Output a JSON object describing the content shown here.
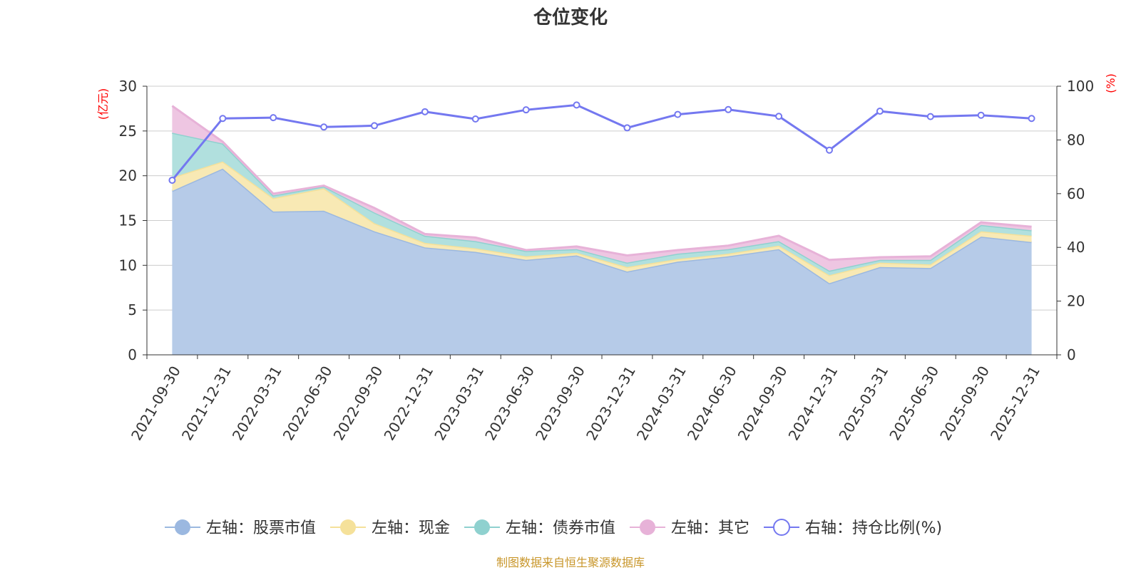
{
  "chart_data": {
    "type": "area",
    "title": "仓位变化",
    "left_axis_unit": "(亿元)",
    "right_axis_unit": "(%)",
    "ylim_left": [
      0,
      30
    ],
    "yticks_left": [
      "0",
      "5",
      "10",
      "15",
      "20",
      "25",
      "30"
    ],
    "ylim_right": [
      0,
      100
    ],
    "yticks_right": [
      "0",
      "20",
      "40",
      "60",
      "80",
      "100"
    ],
    "categories": [
      "2021-09-30",
      "2021-12-31",
      "2022-03-31",
      "2022-06-30",
      "2022-09-30",
      "2022-12-31",
      "2023-03-31",
      "2023-06-30",
      "2023-09-30",
      "2023-12-31",
      "2024-03-31",
      "2024-06-30",
      "2024-09-30",
      "2024-12-31",
      "2025-03-31",
      "2025-06-30",
      "2025-09-30",
      "2025-12-31"
    ],
    "series": [
      {
        "name": "左轴：股票市值",
        "axis": "left",
        "color": "#9bb8e0",
        "fill": "#b6cbe8",
        "values": [
          18.3,
          20.8,
          16.0,
          16.1,
          13.8,
          12.0,
          11.5,
          10.6,
          11.1,
          9.3,
          10.4,
          11.0,
          11.8,
          8.0,
          9.8,
          9.7,
          13.2,
          12.6
        ]
      },
      {
        "name": "左轴：现金",
        "axis": "left",
        "color": "#f5e19a",
        "fill": "#f8e9b4",
        "values": [
          1.5,
          0.8,
          1.5,
          2.5,
          0.9,
          0.5,
          0.4,
          0.4,
          0.3,
          0.5,
          0.3,
          0.3,
          0.4,
          0.9,
          0.5,
          0.4,
          0.6,
          0.7
        ]
      },
      {
        "name": "左轴：债券市值",
        "axis": "left",
        "color": "#8fd1cf",
        "fill": "#b1e0de",
        "values": [
          5.0,
          2.0,
          0.3,
          0.2,
          1.2,
          0.8,
          0.8,
          0.6,
          0.4,
          0.5,
          0.6,
          0.5,
          0.5,
          0.5,
          0.3,
          0.5,
          0.7,
          0.6
        ]
      },
      {
        "name": "左轴：其它",
        "axis": "left",
        "color": "#e7b2d8",
        "fill": "#eec6e2",
        "values": [
          3.0,
          0.2,
          0.2,
          0.1,
          0.5,
          0.2,
          0.4,
          0.1,
          0.3,
          0.8,
          0.4,
          0.4,
          0.6,
          1.2,
          0.3,
          0.4,
          0.3,
          0.4
        ]
      },
      {
        "name": "右轴：持仓比例(%)",
        "axis": "right",
        "type": "line",
        "color": "#7478f0",
        "values": [
          65.0,
          88.0,
          88.3,
          84.8,
          85.3,
          90.5,
          87.8,
          91.2,
          93.0,
          84.5,
          89.5,
          91.3,
          88.8,
          76.2,
          90.7,
          88.7,
          89.2,
          88.0
        ]
      }
    ],
    "legend_position": "bottom-center",
    "grid": true
  },
  "source_text": "制图数据来自恒生聚源数据库"
}
